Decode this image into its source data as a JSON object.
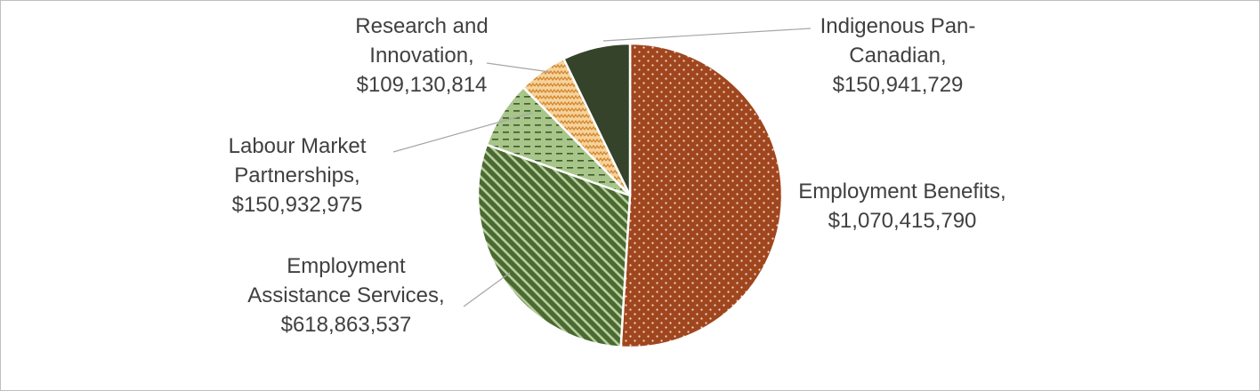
{
  "chart_data": {
    "type": "pie",
    "title": "",
    "categories": [
      "Employment Benefits",
      "Employment Assistance Services",
      "Labour Market Partnerships",
      "Research and Innovation",
      "Indigenous Pan-Canadian"
    ],
    "values": [
      1070415790,
      618863537,
      150932975,
      109130814,
      150941729
    ],
    "data_labels": [
      [
        "Employment Benefits,",
        "$1,070,415,790"
      ],
      [
        "Employment",
        "Assistance Services,",
        "$618,863,537"
      ],
      [
        "Labour Market",
        "Partnerships,",
        "$150,932,975"
      ],
      [
        "Research and",
        "Innovation,",
        "$109,130,814"
      ],
      [
        "Indigenous Pan-",
        "Canadian,",
        "$150,941,729"
      ]
    ],
    "colors": [
      "#a0461e",
      "#4a6a30",
      "#a8c58a",
      "#f6d39a",
      "#34432a"
    ],
    "patterns": [
      "dots",
      "diagonal-stripes",
      "dashed-horizontal",
      "zigzag",
      "solid"
    ],
    "start_angle_deg": 0,
    "direction": "clockwise",
    "legend": "none"
  }
}
